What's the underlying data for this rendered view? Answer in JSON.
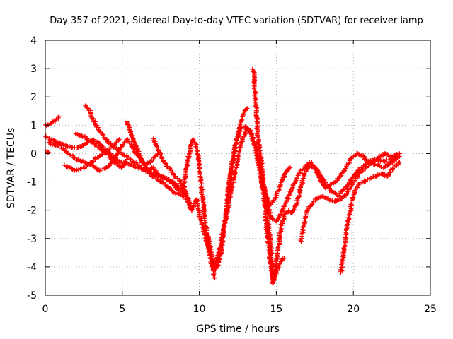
{
  "chart_data": {
    "type": "scatter",
    "title": "Day 357 of 2021, Sidereal Day-to-day VTEC variation (SDTVAR) for receiver lamp",
    "xlabel": "GPS time / hours",
    "ylabel": "SDTVAR / TECUs",
    "xlim": [
      0,
      25
    ],
    "ylim": [
      -5,
      4
    ],
    "xticks": [
      "0",
      "5",
      "10",
      "15",
      "20",
      "25"
    ],
    "yticks": [
      "-5",
      "-4",
      "-3",
      "-2",
      "-1",
      "0",
      "1",
      "2",
      "3",
      "4"
    ],
    "grid": true,
    "marker": "plus",
    "color": "#ff0000",
    "series": [
      {
        "points": [
          [
            0.0,
            1.0
          ],
          [
            0.3,
            1.05
          ],
          [
            0.6,
            1.15
          ],
          [
            0.9,
            1.3
          ]
        ]
      },
      {
        "points": [
          [
            0.0,
            0.6
          ],
          [
            0.5,
            0.45
          ],
          [
            1.0,
            0.35
          ],
          [
            1.5,
            0.25
          ],
          [
            2.0,
            0.2
          ],
          [
            2.5,
            0.3
          ],
          [
            3.0,
            0.5
          ],
          [
            3.4,
            0.4
          ],
          [
            3.8,
            0.2
          ],
          [
            4.2,
            0.0
          ],
          [
            4.6,
            -0.2
          ],
          [
            5.0,
            -0.3
          ],
          [
            5.5,
            -0.4
          ],
          [
            6.0,
            -0.5
          ],
          [
            6.5,
            -0.55
          ],
          [
            7.0,
            -0.7
          ],
          [
            7.5,
            -0.8
          ],
          [
            8.0,
            -0.9
          ],
          [
            8.5,
            -1.1
          ],
          [
            9.0,
            -1.4
          ],
          [
            9.3,
            -1.8
          ],
          [
            9.5,
            -2.0
          ]
        ]
      },
      {
        "points": [
          [
            0.0,
            0.1
          ],
          [
            0.2,
            0.05
          ]
        ]
      },
      {
        "points": [
          [
            0.2,
            0.4
          ],
          [
            0.6,
            0.3
          ],
          [
            1.0,
            0.25
          ],
          [
            1.5,
            0.0
          ],
          [
            2.0,
            -0.2
          ],
          [
            2.5,
            -0.3
          ],
          [
            3.0,
            -0.4
          ],
          [
            3.5,
            -0.6
          ],
          [
            4.0,
            -0.5
          ],
          [
            4.3,
            -0.3
          ],
          [
            4.7,
            0.0
          ],
          [
            5.0,
            0.3
          ],
          [
            5.3,
            0.5
          ],
          [
            5.6,
            0.3
          ],
          [
            5.9,
            0.0
          ],
          [
            6.2,
            -0.2
          ],
          [
            6.5,
            -0.4
          ],
          [
            6.8,
            -0.3
          ],
          [
            7.1,
            -0.1
          ],
          [
            7.3,
            0.0
          ]
        ]
      },
      {
        "points": [
          [
            1.2,
            -0.4
          ],
          [
            1.6,
            -0.5
          ],
          [
            2.0,
            -0.6
          ],
          [
            2.5,
            -0.5
          ],
          [
            3.0,
            -0.3
          ],
          [
            3.5,
            -0.1
          ],
          [
            4.0,
            0.1
          ],
          [
            4.5,
            0.3
          ],
          [
            4.8,
            0.5
          ]
        ]
      },
      {
        "points": [
          [
            2.6,
            1.7
          ],
          [
            2.9,
            1.5
          ],
          [
            3.2,
            1.1
          ],
          [
            3.5,
            0.8
          ],
          [
            3.8,
            0.6
          ],
          [
            4.1,
            0.4
          ],
          [
            4.5,
            0.2
          ],
          [
            5.0,
            0.0
          ],
          [
            5.5,
            -0.2
          ],
          [
            6.0,
            -0.4
          ],
          [
            6.5,
            -0.6
          ],
          [
            7.0,
            -0.8
          ],
          [
            7.5,
            -1.0
          ],
          [
            8.0,
            -1.2
          ],
          [
            8.5,
            -1.4
          ],
          [
            9.0,
            -1.5
          ]
        ]
      },
      {
        "points": [
          [
            2.0,
            0.7
          ],
          [
            2.5,
            0.6
          ],
          [
            3.0,
            0.4
          ],
          [
            3.5,
            0.2
          ],
          [
            4.0,
            0.0
          ],
          [
            4.5,
            -0.3
          ],
          [
            5.0,
            -0.5
          ],
          [
            5.3,
            -0.2
          ]
        ]
      },
      {
        "points": [
          [
            5.3,
            1.1
          ],
          [
            5.5,
            0.8
          ],
          [
            5.7,
            0.5
          ],
          [
            6.0,
            0.1
          ],
          [
            6.3,
            -0.3
          ],
          [
            6.7,
            -0.6
          ],
          [
            7.0,
            -0.5
          ],
          [
            7.4,
            -0.8
          ],
          [
            7.8,
            -0.9
          ],
          [
            8.2,
            -1.0
          ],
          [
            8.6,
            -1.3
          ],
          [
            9.0,
            -1.2
          ],
          [
            9.2,
            -0.4
          ],
          [
            9.4,
            0.2
          ],
          [
            9.6,
            0.5
          ],
          [
            9.8,
            0.3
          ],
          [
            10.0,
            -0.5
          ],
          [
            10.2,
            -1.5
          ],
          [
            10.4,
            -2.5
          ],
          [
            10.6,
            -3.3
          ],
          [
            10.8,
            -3.9
          ],
          [
            11.0,
            -4.4
          ]
        ]
      },
      {
        "points": [
          [
            7.0,
            0.5
          ],
          [
            7.3,
            0.2
          ],
          [
            7.6,
            -0.2
          ],
          [
            8.0,
            -0.5
          ],
          [
            8.4,
            -0.8
          ],
          [
            8.8,
            -1.0
          ],
          [
            9.2,
            -1.5
          ],
          [
            9.5,
            -2.0
          ],
          [
            9.8,
            -1.6
          ],
          [
            10.1,
            -2.3
          ],
          [
            10.4,
            -3.0
          ],
          [
            10.7,
            -3.5
          ],
          [
            11.0,
            -4.0
          ],
          [
            11.3,
            -3.4
          ],
          [
            11.6,
            -2.6
          ],
          [
            11.9,
            -1.8
          ],
          [
            12.2,
            -1.0
          ],
          [
            12.5,
            -0.2
          ],
          [
            12.8,
            0.5
          ],
          [
            13.1,
            0.9
          ],
          [
            13.4,
            0.7
          ],
          [
            13.7,
            0.2
          ],
          [
            14.0,
            -0.5
          ],
          [
            14.3,
            -1.5
          ],
          [
            14.6,
            -2.2
          ],
          [
            15.0,
            -2.4
          ],
          [
            15.4,
            -2.0
          ],
          [
            15.8,
            -1.5
          ],
          [
            16.2,
            -1.0
          ],
          [
            16.6,
            -0.6
          ],
          [
            17.0,
            -0.4
          ],
          [
            17.5,
            -0.5
          ],
          [
            18.0,
            -0.9
          ],
          [
            18.5,
            -1.3
          ],
          [
            19.0,
            -1.5
          ],
          [
            19.5,
            -1.2
          ],
          [
            20.0,
            -0.8
          ],
          [
            20.5,
            -0.5
          ],
          [
            21.0,
            -0.3
          ],
          [
            21.5,
            -0.4
          ],
          [
            22.0,
            -0.5
          ],
          [
            22.5,
            -0.3
          ],
          [
            23.0,
            -0.1
          ]
        ]
      },
      {
        "points": [
          [
            10.5,
            -2.8
          ],
          [
            10.8,
            -3.6
          ],
          [
            11.1,
            -4.1
          ],
          [
            11.4,
            -3.5
          ],
          [
            11.7,
            -2.2
          ],
          [
            12.0,
            -0.9
          ],
          [
            12.3,
            0.2
          ],
          [
            12.6,
            0.9
          ],
          [
            12.9,
            1.5
          ],
          [
            13.1,
            1.6
          ]
        ]
      },
      {
        "points": [
          [
            11.8,
            -1.5
          ],
          [
            12.1,
            -0.5
          ],
          [
            12.4,
            0.4
          ],
          [
            12.7,
            0.9
          ],
          [
            13.0,
            0.95
          ],
          [
            13.3,
            0.8
          ],
          [
            13.6,
            0.3
          ],
          [
            13.9,
            -0.5
          ],
          [
            14.2,
            -1.5
          ],
          [
            14.4,
            -2.8
          ],
          [
            14.6,
            -3.8
          ],
          [
            14.8,
            -4.5
          ],
          [
            15.0,
            -4.2
          ],
          [
            15.2,
            -3.9
          ],
          [
            15.5,
            -3.7
          ]
        ]
      },
      {
        "points": [
          [
            13.5,
            3.0
          ],
          [
            13.6,
            2.3
          ],
          [
            13.7,
            1.5
          ],
          [
            13.8,
            0.6
          ],
          [
            14.0,
            -0.2
          ],
          [
            14.2,
            -1.2
          ],
          [
            14.4,
            -2.0
          ],
          [
            14.6,
            -3.0
          ],
          [
            14.7,
            -3.8
          ],
          [
            14.8,
            -4.6
          ],
          [
            14.9,
            -4.3
          ],
          [
            15.1,
            -3.5
          ],
          [
            15.3,
            -2.6
          ],
          [
            15.5,
            -2.2
          ],
          [
            15.8,
            -2.0
          ],
          [
            16.0,
            -2.1
          ],
          [
            16.3,
            -1.8
          ],
          [
            16.6,
            -1.2
          ],
          [
            16.9,
            -0.6
          ],
          [
            17.2,
            -0.3
          ],
          [
            17.5,
            -0.5
          ],
          [
            17.8,
            -0.9
          ],
          [
            18.2,
            -1.2
          ],
          [
            18.6,
            -1.1
          ],
          [
            19.0,
            -0.9
          ],
          [
            19.4,
            -0.6
          ],
          [
            19.8,
            -0.2
          ],
          [
            20.2,
            0.0
          ],
          [
            20.6,
            -0.1
          ],
          [
            21.0,
            -0.3
          ],
          [
            21.5,
            -0.2
          ],
          [
            22.0,
            0.0
          ],
          [
            22.5,
            -0.1
          ],
          [
            23.0,
            0.0
          ]
        ]
      },
      {
        "points": [
          [
            14.0,
            -1.0
          ],
          [
            14.3,
            -1.4
          ],
          [
            14.6,
            -1.8
          ],
          [
            14.9,
            -1.6
          ],
          [
            15.2,
            -1.2
          ],
          [
            15.5,
            -0.8
          ],
          [
            15.7,
            -0.6
          ],
          [
            15.9,
            -0.5
          ]
        ]
      },
      {
        "points": [
          [
            16.6,
            -3.1
          ],
          [
            16.8,
            -2.5
          ],
          [
            17.0,
            -2.0
          ],
          [
            17.3,
            -1.8
          ],
          [
            17.6,
            -1.6
          ],
          [
            18.0,
            -1.5
          ],
          [
            18.4,
            -1.6
          ],
          [
            18.8,
            -1.7
          ],
          [
            19.2,
            -1.6
          ],
          [
            19.6,
            -1.4
          ],
          [
            20.0,
            -1.0
          ],
          [
            20.4,
            -0.7
          ],
          [
            20.8,
            -0.5
          ],
          [
            21.2,
            -0.3
          ],
          [
            21.6,
            -0.2
          ],
          [
            22.0,
            -0.3
          ],
          [
            22.4,
            -0.2
          ],
          [
            22.8,
            -0.05
          ]
        ]
      },
      {
        "points": [
          [
            19.2,
            -4.2
          ],
          [
            19.4,
            -3.4
          ],
          [
            19.6,
            -2.6
          ],
          [
            19.8,
            -2.0
          ],
          [
            20.0,
            -1.5
          ],
          [
            20.3,
            -1.1
          ],
          [
            20.6,
            -1.0
          ],
          [
            21.0,
            -0.9
          ],
          [
            21.4,
            -0.8
          ],
          [
            21.8,
            -0.7
          ],
          [
            22.2,
            -0.8
          ],
          [
            22.6,
            -0.5
          ],
          [
            23.0,
            -0.3
          ]
        ]
      }
    ]
  }
}
